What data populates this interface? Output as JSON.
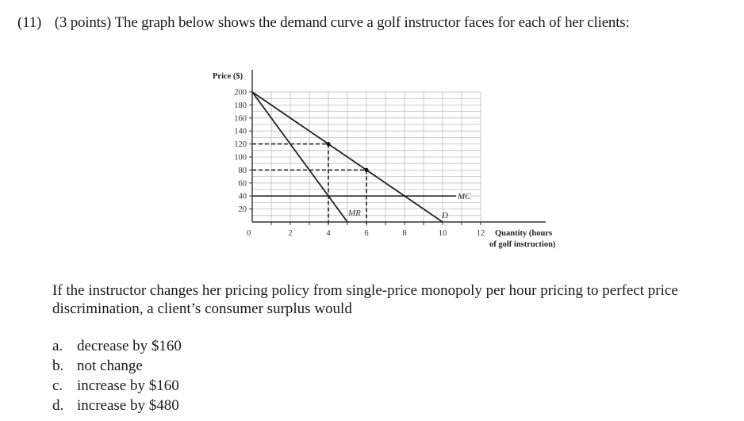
{
  "question": {
    "number": "(11)",
    "points": "(3 points)",
    "intro": "The graph below shows the demand curve a golf instructor faces for each of her clients:",
    "prompt": "If the instructor changes her pricing policy from single-price monopoly per hour pricing to perfect price discrimination, a client’s consumer surplus would",
    "options": [
      {
        "letter": "a.",
        "text": "decrease by $160"
      },
      {
        "letter": "b.",
        "text": "not change"
      },
      {
        "letter": "c.",
        "text": "increase by $160"
      },
      {
        "letter": "d.",
        "text": "increase by $480"
      }
    ]
  },
  "graph": {
    "y_label": "Price ($)",
    "x_label_line1": "Quantity (hours",
    "x_label_line2": "of golf instruction)",
    "origin_label": "0",
    "y_ticks": [
      "20",
      "40",
      "60",
      "80",
      "100",
      "120",
      "140",
      "160",
      "180",
      "200"
    ],
    "x_ticks": [
      "2",
      "4",
      "6",
      "8",
      "10",
      "12"
    ],
    "curve_labels": {
      "demand": "D",
      "mr": "MR",
      "mc": "MC"
    }
  },
  "chart_data": {
    "type": "line",
    "title": "",
    "xlabel": "Quantity (hours of golf instruction)",
    "ylabel": "Price ($)",
    "xlim": [
      0,
      12
    ],
    "ylim": [
      0,
      200
    ],
    "grid": true,
    "x_ticks": [
      2,
      4,
      6,
      8,
      10,
      12
    ],
    "y_ticks": [
      20,
      40,
      60,
      80,
      100,
      120,
      140,
      160,
      180,
      200
    ],
    "series": [
      {
        "name": "D",
        "x": [
          0,
          10
        ],
        "y": [
          200,
          0
        ]
      },
      {
        "name": "MR",
        "x": [
          0,
          5
        ],
        "y": [
          200,
          0
        ]
      },
      {
        "name": "MC",
        "x": [
          0,
          10.7
        ],
        "y": [
          40,
          40
        ]
      }
    ],
    "annotations": [
      {
        "type": "point",
        "x": 4,
        "y": 120,
        "dashed_guides": true
      },
      {
        "type": "point",
        "x": 6,
        "y": 80,
        "dashed_guides": true
      }
    ]
  }
}
